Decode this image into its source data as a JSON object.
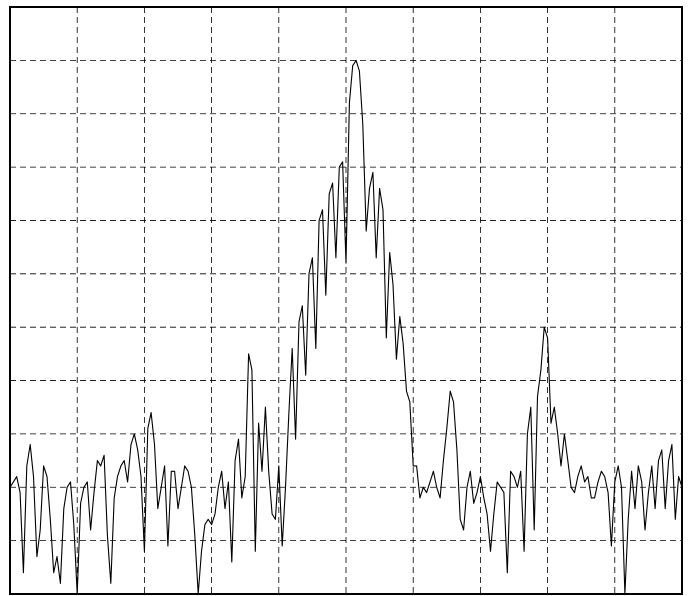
{
  "chart_data": {
    "type": "line",
    "title": "",
    "xlabel": "",
    "ylabel": "",
    "xlim": [
      0,
      10
    ],
    "ylim": [
      0,
      11
    ],
    "grid": true,
    "grid_style": "dashed",
    "line_color": "#000000",
    "series": [
      {
        "name": "",
        "points": [
          [
            0.0,
            2.0
          ],
          [
            0.05,
            2.1
          ],
          [
            0.1,
            2.2
          ],
          [
            0.15,
            1.9
          ],
          [
            0.2,
            0.4
          ],
          [
            0.25,
            2.4
          ],
          [
            0.3,
            2.8
          ],
          [
            0.35,
            2.2
          ],
          [
            0.4,
            0.7
          ],
          [
            0.45,
            1.2
          ],
          [
            0.5,
            2.4
          ],
          [
            0.55,
            2.2
          ],
          [
            0.6,
            1.4
          ],
          [
            0.65,
            0.4
          ],
          [
            0.7,
            0.7
          ],
          [
            0.75,
            0.2
          ],
          [
            0.8,
            1.6
          ],
          [
            0.85,
            2.0
          ],
          [
            0.9,
            2.1
          ],
          [
            0.95,
            1.3
          ],
          [
            1.0,
            0.0
          ],
          [
            1.05,
            1.7
          ],
          [
            1.1,
            2.0
          ],
          [
            1.15,
            2.1
          ],
          [
            1.2,
            1.2
          ],
          [
            1.25,
            1.9
          ],
          [
            1.3,
            2.5
          ],
          [
            1.35,
            2.4
          ],
          [
            1.4,
            2.6
          ],
          [
            1.45,
            1.1
          ],
          [
            1.5,
            0.2
          ],
          [
            1.55,
            1.8
          ],
          [
            1.6,
            2.2
          ],
          [
            1.65,
            2.4
          ],
          [
            1.7,
            2.5
          ],
          [
            1.75,
            2.1
          ],
          [
            1.8,
            2.8
          ],
          [
            1.85,
            3.0
          ],
          [
            1.9,
            2.7
          ],
          [
            1.95,
            2.2
          ],
          [
            2.0,
            0.8
          ],
          [
            2.05,
            3.1
          ],
          [
            2.1,
            3.4
          ],
          [
            2.15,
            2.8
          ],
          [
            2.2,
            1.6
          ],
          [
            2.25,
            2.0
          ],
          [
            2.3,
            2.4
          ],
          [
            2.35,
            0.9
          ],
          [
            2.4,
            2.3
          ],
          [
            2.45,
            2.3
          ],
          [
            2.5,
            1.6
          ],
          [
            2.55,
            2.0
          ],
          [
            2.6,
            2.4
          ],
          [
            2.65,
            2.3
          ],
          [
            2.7,
            2.0
          ],
          [
            2.75,
            1.1
          ],
          [
            2.8,
            0.0
          ],
          [
            2.85,
            0.8
          ],
          [
            2.9,
            1.3
          ],
          [
            2.95,
            1.4
          ],
          [
            3.0,
            1.3
          ],
          [
            3.05,
            1.5
          ],
          [
            3.1,
            2.0
          ],
          [
            3.15,
            2.3
          ],
          [
            3.2,
            1.6
          ],
          [
            3.25,
            2.1
          ],
          [
            3.3,
            0.6
          ],
          [
            3.35,
            2.5
          ],
          [
            3.4,
            2.9
          ],
          [
            3.45,
            1.8
          ],
          [
            3.5,
            2.2
          ],
          [
            3.55,
            4.5
          ],
          [
            3.6,
            4.2
          ],
          [
            3.65,
            0.8
          ],
          [
            3.7,
            3.2
          ],
          [
            3.75,
            2.3
          ],
          [
            3.8,
            3.5
          ],
          [
            3.85,
            2.3
          ],
          [
            3.9,
            1.5
          ],
          [
            3.95,
            1.4
          ],
          [
            4.0,
            2.4
          ],
          [
            4.05,
            0.9
          ],
          [
            4.1,
            2.0
          ],
          [
            4.15,
            3.4
          ],
          [
            4.2,
            4.6
          ],
          [
            4.25,
            2.9
          ],
          [
            4.3,
            5.1
          ],
          [
            4.35,
            5.4
          ],
          [
            4.4,
            4.1
          ],
          [
            4.45,
            6.0
          ],
          [
            4.5,
            6.3
          ],
          [
            4.55,
            4.6
          ],
          [
            4.6,
            7.0
          ],
          [
            4.65,
            7.2
          ],
          [
            4.7,
            5.6
          ],
          [
            4.75,
            7.5
          ],
          [
            4.8,
            7.7
          ],
          [
            4.85,
            6.3
          ],
          [
            4.9,
            8.0
          ],
          [
            4.95,
            8.1
          ],
          [
            5.0,
            6.2
          ],
          [
            5.05,
            9.2
          ],
          [
            5.1,
            9.9
          ],
          [
            5.15,
            10.0
          ],
          [
            5.2,
            9.8
          ],
          [
            5.25,
            8.8
          ],
          [
            5.3,
            6.8
          ],
          [
            5.35,
            7.6
          ],
          [
            5.4,
            7.9
          ],
          [
            5.45,
            6.3
          ],
          [
            5.5,
            7.6
          ],
          [
            5.55,
            7.2
          ],
          [
            5.6,
            4.8
          ],
          [
            5.65,
            6.4
          ],
          [
            5.7,
            5.8
          ],
          [
            5.75,
            4.4
          ],
          [
            5.8,
            5.2
          ],
          [
            5.85,
            4.7
          ],
          [
            5.9,
            3.8
          ],
          [
            5.95,
            3.6
          ],
          [
            6.0,
            2.4
          ],
          [
            6.05,
            2.4
          ],
          [
            6.1,
            1.8
          ],
          [
            6.15,
            2.0
          ],
          [
            6.2,
            1.9
          ],
          [
            6.25,
            2.1
          ],
          [
            6.3,
            2.3
          ],
          [
            6.35,
            2.0
          ],
          [
            6.4,
            1.8
          ],
          [
            6.45,
            2.5
          ],
          [
            6.5,
            3.1
          ],
          [
            6.55,
            3.8
          ],
          [
            6.6,
            3.6
          ],
          [
            6.65,
            2.7
          ],
          [
            6.7,
            1.4
          ],
          [
            6.75,
            1.2
          ],
          [
            6.8,
            2.0
          ],
          [
            6.85,
            2.3
          ],
          [
            6.9,
            1.7
          ],
          [
            6.95,
            1.9
          ],
          [
            7.0,
            2.2
          ],
          [
            7.05,
            1.8
          ],
          [
            7.1,
            1.5
          ],
          [
            7.15,
            0.8
          ],
          [
            7.2,
            1.5
          ],
          [
            7.25,
            2.1
          ],
          [
            7.3,
            2.0
          ],
          [
            7.35,
            1.9
          ],
          [
            7.4,
            0.4
          ],
          [
            7.45,
            2.3
          ],
          [
            7.5,
            2.2
          ],
          [
            7.55,
            2.0
          ],
          [
            7.6,
            2.3
          ],
          [
            7.65,
            0.8
          ],
          [
            7.7,
            3.0
          ],
          [
            7.75,
            3.5
          ],
          [
            7.8,
            1.2
          ],
          [
            7.85,
            3.7
          ],
          [
            7.9,
            4.2
          ],
          [
            7.95,
            5.0
          ],
          [
            8.0,
            4.8
          ],
          [
            8.05,
            3.2
          ],
          [
            8.1,
            3.5
          ],
          [
            8.15,
            3.0
          ],
          [
            8.2,
            2.4
          ],
          [
            8.25,
            3.0
          ],
          [
            8.3,
            2.5
          ],
          [
            8.35,
            2.0
          ],
          [
            8.4,
            1.9
          ],
          [
            8.45,
            2.2
          ],
          [
            8.5,
            2.4
          ],
          [
            8.55,
            2.1
          ],
          [
            8.6,
            2.2
          ],
          [
            8.65,
            1.8
          ],
          [
            8.7,
            1.8
          ],
          [
            8.75,
            2.1
          ],
          [
            8.8,
            2.3
          ],
          [
            8.85,
            2.2
          ],
          [
            8.9,
            1.9
          ],
          [
            8.95,
            0.9
          ],
          [
            9.0,
            2.1
          ],
          [
            9.05,
            2.4
          ],
          [
            9.1,
            2.0
          ],
          [
            9.15,
            0.0
          ],
          [
            9.2,
            1.4
          ],
          [
            9.25,
            2.3
          ],
          [
            9.3,
            1.6
          ],
          [
            9.35,
            2.4
          ],
          [
            9.4,
            2.1
          ],
          [
            9.45,
            1.2
          ],
          [
            9.5,
            1.9
          ],
          [
            9.55,
            2.4
          ],
          [
            9.6,
            1.6
          ],
          [
            9.65,
            2.5
          ],
          [
            9.7,
            2.7
          ],
          [
            9.75,
            1.6
          ],
          [
            9.8,
            2.5
          ],
          [
            9.85,
            2.8
          ],
          [
            9.9,
            1.4
          ],
          [
            9.95,
            2.2
          ],
          [
            10.0,
            2.0
          ]
        ]
      }
    ]
  }
}
